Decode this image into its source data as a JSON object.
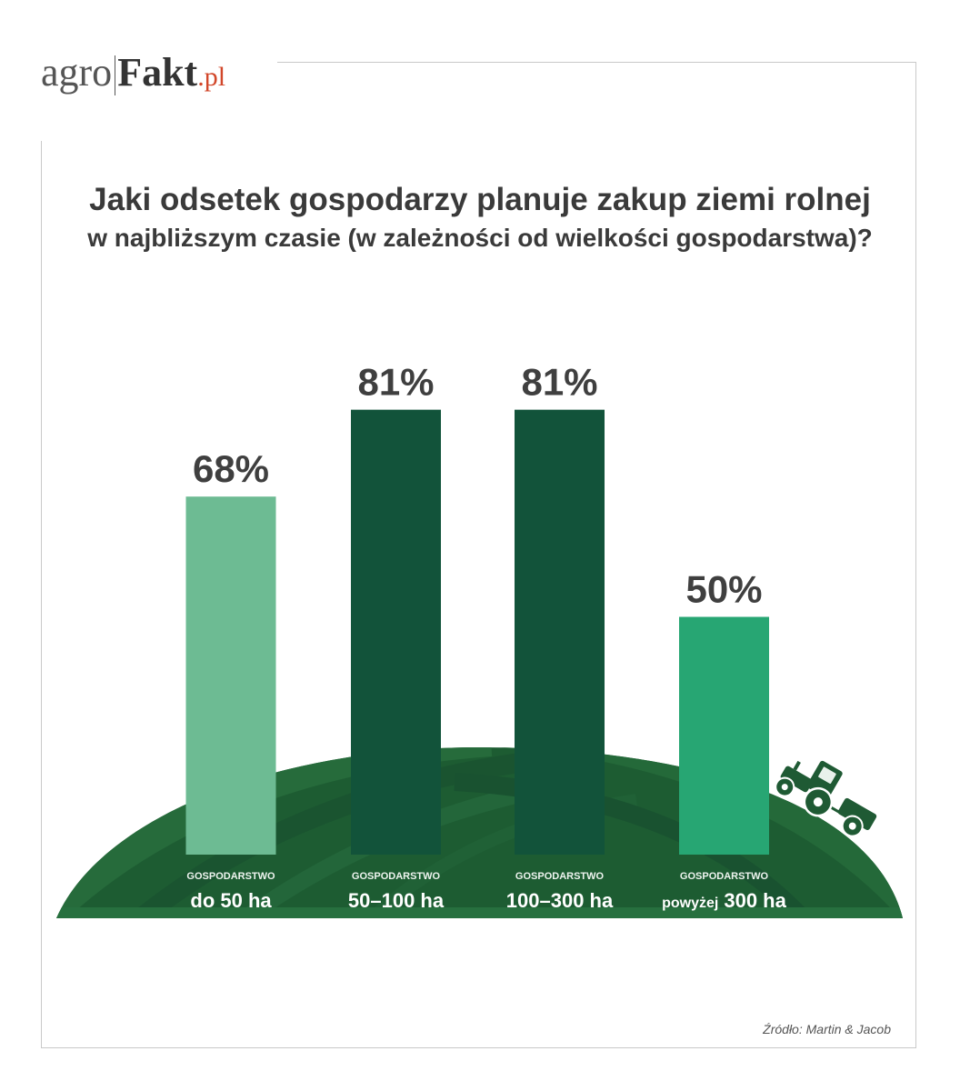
{
  "logo": {
    "part1": "agro",
    "part2": "Fakt",
    "part3": ".pl"
  },
  "source": "Źródło: Martin & Jacob",
  "icons": {
    "tractor": "tractor-icon"
  },
  "colors": {
    "text": "#3a3a3a",
    "logo_accent": "#d2472a",
    "hill": "#1d5c32",
    "frame": "#c9c9c9",
    "label_text": "#ffffff"
  },
  "chart_data": {
    "type": "bar",
    "title": "Jaki odsetek gospodarzy planuje zakup ziemi rolnej",
    "subtitle": "w najbliższym czasie (w zależności od wielkości gospodarstwa)?",
    "categories": [
      {
        "group": "GOSPODARSTWO",
        "range": "do 50 ha"
      },
      {
        "group": "GOSPODARSTWO",
        "range": "50–100 ha"
      },
      {
        "group": "GOSPODARSTWO",
        "range": "100–300 ha"
      },
      {
        "group": "GOSPODARSTWO",
        "qualifier": "powyżej",
        "range": "300 ha"
      }
    ],
    "values": [
      68,
      81,
      81,
      50
    ],
    "data_labels": [
      "68%",
      "81%",
      "81%",
      "50%"
    ],
    "colors": [
      "#6dbb93",
      "#12533a",
      "#12533a",
      "#27a673"
    ],
    "grid": false,
    "axes_visible": false
  }
}
